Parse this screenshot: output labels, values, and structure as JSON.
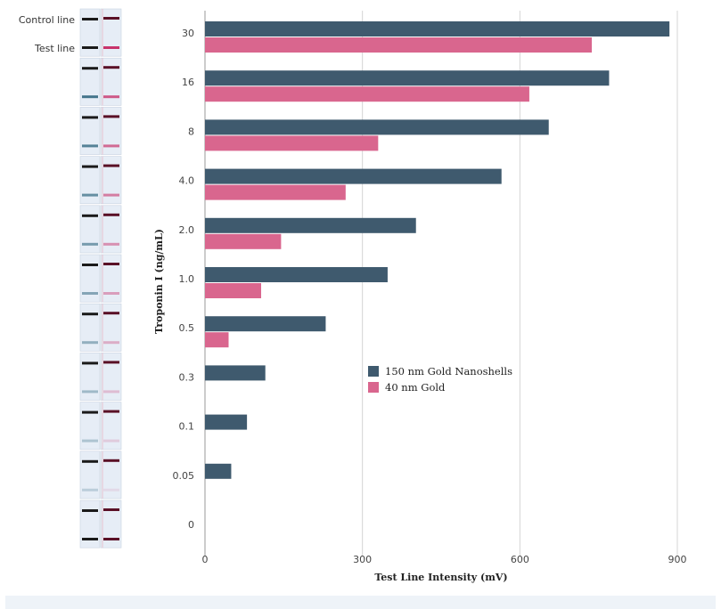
{
  "strips": {
    "control_label": "Control line",
    "test_label": "Test line",
    "count": 11,
    "test_line_strengths": [
      1.0,
      0.8,
      0.7,
      0.6,
      0.5,
      0.42,
      0.34,
      0.26,
      0.18,
      0.1,
      0.0
    ]
  },
  "chart_data": {
    "type": "bar",
    "orientation": "horizontal",
    "categories": [
      "30",
      "16",
      "8",
      "4.0",
      "2.0",
      "1.0",
      "0.5",
      "0.3",
      "0.1",
      "0.05",
      "0"
    ],
    "series": [
      {
        "name": "150 nm Gold Nanoshells",
        "color": "#3f5a6e",
        "values": [
          885,
          770,
          655,
          565,
          402,
          348,
          230,
          115,
          80,
          50,
          0
        ]
      },
      {
        "name": "40 nm Gold",
        "color": "#d9668e",
        "values": [
          737,
          618,
          330,
          268,
          145,
          107,
          45,
          0,
          0,
          0,
          0
        ]
      }
    ],
    "xlabel": "Test Line Intensity (mV)",
    "ylabel": "Troponin I (ng/mL)",
    "xlim": [
      0,
      900
    ],
    "xticks": [
      0,
      300,
      600,
      900
    ],
    "grid": true,
    "legend": "center"
  },
  "colors": {
    "grid": "#d4d4d4",
    "axis": "#9a9a9a",
    "strip_bg": "#e6edf6",
    "control_line": "#1a1a1a",
    "strip2_control": "#5a1026",
    "test_line_blue": "#3b6f86",
    "test_line_pink": "#c8336b"
  }
}
